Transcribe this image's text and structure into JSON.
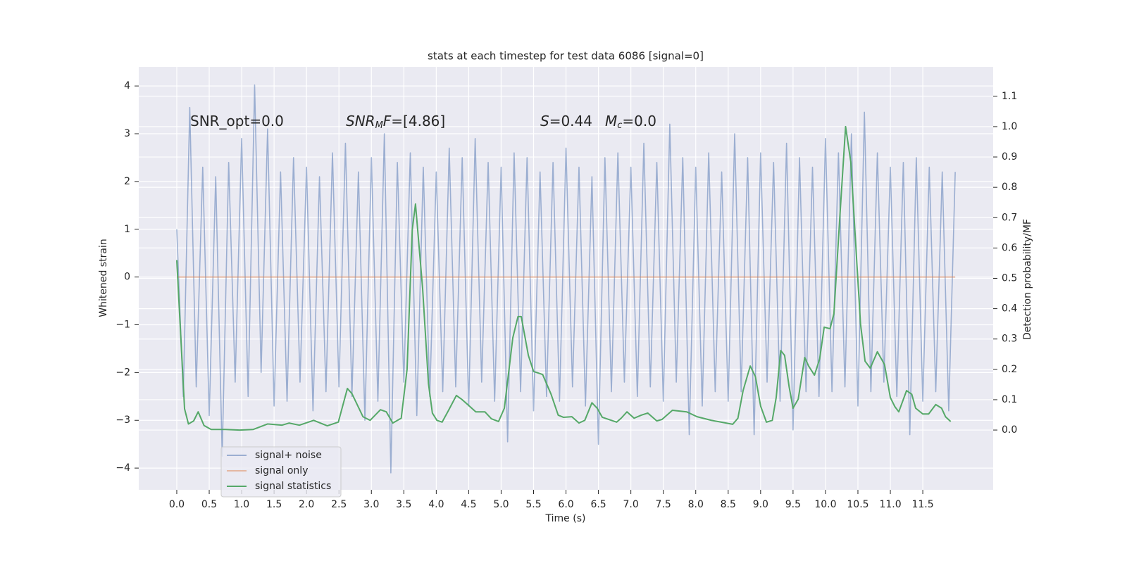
{
  "chart_data": {
    "type": "line",
    "title": "stats at each timestep for test data 6086 [signal=0]",
    "xlabel": "Time (s)",
    "ylabel": "Whitened strain",
    "y2label": "Detection probability/MF",
    "annotations": [
      [
        "SNR_opt=0.0"
      ],
      [
        "SNR",
        "M",
        "F",
        "=[4.86]"
      ],
      [
        "S",
        "=0.44",
        "M",
        "c",
        "=0.0"
      ]
    ],
    "xlim": [
      -0.586,
      12.585
    ],
    "ylim": [
      -4.455,
      4.4
    ],
    "y2lim": [
      -0.197,
      1.197
    ],
    "xticks": [
      {
        "value": 0,
        "label": "0.0"
      },
      0.5,
      {
        "value": 1,
        "label": "1.0"
      },
      1.5,
      {
        "value": 2,
        "label": "2.0"
      },
      2.5,
      {
        "value": 3,
        "label": "3.0"
      },
      3.5,
      {
        "value": 4,
        "label": "4.0"
      },
      4.5,
      {
        "value": 5,
        "label": "5.0"
      },
      5.5,
      {
        "value": 6,
        "label": "6.0"
      },
      6.5,
      {
        "value": 7,
        "label": "7.0"
      },
      7.5,
      {
        "value": 8,
        "label": "8.0"
      },
      8.5,
      {
        "value": 9,
        "label": "9.0"
      },
      9.5,
      {
        "value": 10,
        "label": "10.0"
      },
      10.5,
      {
        "value": 11,
        "label": "11.0"
      },
      11.5
    ],
    "yticks": [
      {
        "value": -4,
        "label": "−4"
      },
      {
        "value": -3,
        "label": "−3"
      },
      {
        "value": -2,
        "label": "−2"
      },
      {
        "value": -1,
        "label": "−1"
      },
      0,
      1,
      2,
      3,
      4
    ],
    "y2ticks": [
      {
        "value": 0,
        "label": "0.0"
      },
      0.1,
      0.2,
      0.3,
      0.4,
      0.5,
      0.6,
      0.7,
      0.8,
      0.9,
      {
        "value": 1,
        "label": "1.0"
      },
      1.1
    ],
    "grid": true,
    "legend": "lower left",
    "series": [
      {
        "name": "signal+ noise",
        "color": "#4c72b0",
        "x": [
          0.0,
          0.1,
          0.2,
          0.3,
          0.4,
          0.5,
          0.6,
          0.7,
          0.8,
          0.9,
          1.0,
          1.1,
          1.2,
          1.3,
          1.4,
          1.5,
          1.6,
          1.7,
          1.8,
          1.9,
          2.0,
          2.1,
          2.2,
          2.3,
          2.4,
          2.5,
          2.6,
          2.7,
          2.8,
          2.9,
          3.0,
          3.1,
          3.2,
          3.3,
          3.4,
          3.5,
          3.6,
          3.7,
          3.8,
          3.9,
          4.0,
          4.1,
          4.2,
          4.3,
          4.4,
          4.5,
          4.6,
          4.7,
          4.8,
          4.9,
          5.0,
          5.1,
          5.2,
          5.3,
          5.4,
          5.5,
          5.6,
          5.7,
          5.8,
          5.9,
          6.0,
          6.1,
          6.2,
          6.3,
          6.4,
          6.5,
          6.6,
          6.7,
          6.8,
          6.9,
          7.0,
          7.1,
          7.2,
          7.3,
          7.4,
          7.5,
          7.6,
          7.7,
          7.8,
          7.9,
          8.0,
          8.1,
          8.2,
          8.3,
          8.4,
          8.5,
          8.6,
          8.7,
          8.8,
          8.9,
          9.0,
          9.1,
          9.2,
          9.3,
          9.4,
          9.5,
          9.6,
          9.7,
          9.8,
          9.9,
          10.0,
          10.1,
          10.2,
          10.3,
          10.4,
          10.5,
          10.6,
          10.7,
          10.8,
          10.9,
          11.0,
          11.1,
          11.2,
          11.3,
          11.4,
          11.5,
          11.6,
          11.7,
          11.8,
          11.9,
          12.0
        ],
        "values": [
          1.0,
          -2.5,
          3.55,
          -2.3,
          2.3,
          -2.9,
          2.1,
          -3.75,
          2.4,
          -2.2,
          2.9,
          -2.5,
          4.02,
          -2.0,
          3.1,
          -2.7,
          2.2,
          -2.6,
          2.5,
          -2.2,
          2.3,
          -2.8,
          2.1,
          -2.4,
          2.6,
          -2.3,
          2.8,
          -2.5,
          2.2,
          -3.0,
          2.5,
          -2.6,
          3.0,
          -4.1,
          2.4,
          -2.2,
          2.6,
          -2.9,
          2.3,
          -2.5,
          2.2,
          -2.4,
          2.7,
          -2.3,
          2.5,
          -2.7,
          2.9,
          -2.2,
          2.4,
          -2.6,
          2.3,
          -3.45,
          2.6,
          -2.4,
          2.5,
          -2.8,
          2.2,
          -2.5,
          2.4,
          -2.6,
          2.7,
          -2.3,
          2.3,
          -2.7,
          2.1,
          -3.5,
          2.5,
          -2.4,
          2.6,
          -2.2,
          2.3,
          -2.5,
          2.8,
          -2.3,
          2.4,
          -2.6,
          3.2,
          -2.2,
          2.5,
          -3.3,
          2.3,
          -2.7,
          2.6,
          -2.4,
          2.2,
          -2.6,
          3.0,
          -2.4,
          2.5,
          -3.3,
          2.6,
          -2.2,
          2.4,
          -2.6,
          2.8,
          -3.2,
          2.5,
          -2.4,
          2.3,
          -2.5,
          2.9,
          -2.4,
          2.6,
          -2.3,
          3.0,
          -2.7,
          3.45,
          -2.4,
          2.6,
          -2.2,
          2.3,
          -2.5,
          2.4,
          -3.3,
          2.5,
          -2.6,
          2.3,
          -2.4,
          2.2,
          -2.8,
          2.2
        ]
      },
      {
        "name": "signal only",
        "color": "#dd8452",
        "x": [
          0.0,
          12.0
        ],
        "values": [
          0,
          0
        ]
      },
      {
        "name": "signal statistics",
        "color": "#55a868",
        "axis": "y2",
        "x": [
          0,
          0.12,
          0.18,
          0.26,
          0.33,
          0.42,
          0.53,
          0.75,
          0.97,
          1.18,
          1.4,
          1.62,
          1.73,
          1.89,
          2.11,
          2.32,
          2.49,
          2.63,
          2.7,
          2.87,
          2.98,
          3.14,
          3.23,
          3.33,
          3.46,
          3.55,
          3.63,
          3.68,
          3.79,
          3.88,
          3.94,
          4.01,
          4.09,
          4.19,
          4.31,
          4.4,
          4.5,
          4.61,
          4.75,
          4.85,
          4.96,
          5.05,
          5.18,
          5.26,
          5.31,
          5.42,
          5.5,
          5.64,
          5.77,
          5.88,
          5.96,
          6.09,
          6.2,
          6.29,
          6.4,
          6.48,
          6.56,
          6.78,
          6.85,
          6.94,
          7.05,
          7.16,
          7.26,
          7.4,
          7.48,
          7.64,
          7.86,
          8.02,
          8.24,
          8.57,
          8.65,
          8.73,
          8.84,
          8.92,
          9.0,
          9.09,
          9.18,
          9.24,
          9.31,
          9.37,
          9.44,
          9.5,
          9.58,
          9.68,
          9.74,
          9.83,
          9.91,
          9.98,
          10.07,
          10.13,
          10.22,
          10.31,
          10.39,
          10.54,
          10.61,
          10.69,
          10.8,
          10.91,
          11.0,
          11.07,
          11.13,
          11.25,
          11.33,
          11.39,
          11.5,
          11.59,
          11.7,
          11.79,
          11.85,
          11.93
        ],
        "values": [
          0.56,
          0.07,
          0.02,
          0.03,
          0.06,
          0.015,
          0.002,
          0.002,
          0.0,
          0.002,
          0.02,
          0.016,
          0.023,
          0.016,
          0.032,
          0.014,
          0.026,
          0.137,
          0.12,
          0.044,
          0.032,
          0.067,
          0.06,
          0.023,
          0.039,
          0.2,
          0.66,
          0.745,
          0.466,
          0.153,
          0.056,
          0.032,
          0.026,
          0.065,
          0.114,
          0.1,
          0.081,
          0.06,
          0.06,
          0.037,
          0.028,
          0.072,
          0.304,
          0.374,
          0.374,
          0.246,
          0.193,
          0.183,
          0.118,
          0.049,
          0.042,
          0.044,
          0.023,
          0.032,
          0.09,
          0.072,
          0.042,
          0.026,
          0.039,
          0.06,
          0.039,
          0.049,
          0.056,
          0.03,
          0.035,
          0.065,
          0.06,
          0.044,
          0.032,
          0.019,
          0.039,
          0.13,
          0.211,
          0.176,
          0.079,
          0.026,
          0.032,
          0.107,
          0.262,
          0.246,
          0.142,
          0.072,
          0.102,
          0.239,
          0.211,
          0.181,
          0.234,
          0.339,
          0.334,
          0.383,
          0.698,
          1.0,
          0.884,
          0.35,
          0.227,
          0.204,
          0.258,
          0.216,
          0.107,
          0.077,
          0.06,
          0.13,
          0.118,
          0.072,
          0.053,
          0.053,
          0.084,
          0.072,
          0.044,
          0.028
        ]
      }
    ]
  }
}
